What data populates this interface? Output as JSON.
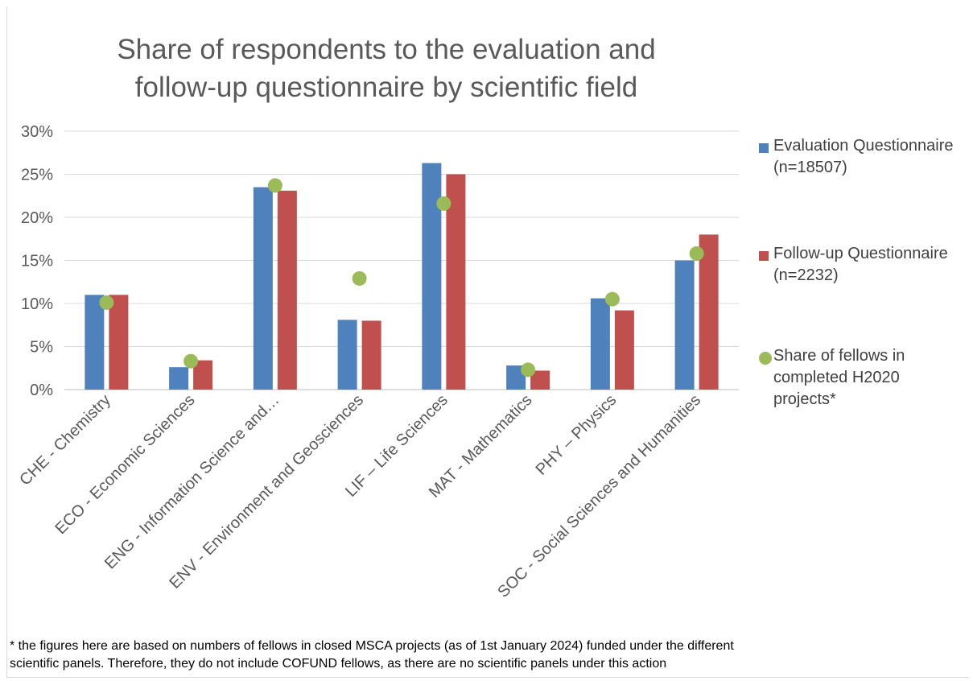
{
  "chart_data": {
    "type": "bar",
    "title": "Share of respondents to the evaluation and follow-up questionnaire by scientific field",
    "title_lines": [
      "Share of respondents to the evaluation and",
      "follow-up questionnaire by scientific field"
    ],
    "categories": [
      "CHE - Chemistry",
      "ECO - Economic Sciences",
      "ENG - Information Science and…",
      "ENV - Environment and Geosciences",
      "LIF – Life Sciences",
      "MAT - Mathematics",
      "PHY – Physics",
      "SOC - Social Sciences and Humanities"
    ],
    "series": [
      {
        "name": "Evaluation Questionnaire (n=18507)",
        "label_lines": [
          "Evaluation Questionnaire",
          "(n=18507)"
        ],
        "kind": "bar",
        "color": "#4f81bd",
        "values": [
          11.0,
          2.6,
          23.5,
          8.1,
          26.3,
          2.8,
          10.6,
          15.0
        ]
      },
      {
        "name": "Follow-up Questionnaire (n=2232)",
        "label_lines": [
          "Follow-up Questionnaire",
          "(n=2232)"
        ],
        "kind": "bar",
        "color": "#c0504d",
        "values": [
          11.0,
          3.4,
          23.1,
          8.0,
          25.0,
          2.2,
          9.2,
          18.0
        ]
      },
      {
        "name": "Share of fellows in completed H2020 projects*",
        "label_lines": [
          "Share of fellows in",
          "completed H2020",
          "projects*"
        ],
        "kind": "marker",
        "color": "#9bbb59",
        "values": [
          10.1,
          3.3,
          23.7,
          12.9,
          21.6,
          2.3,
          10.5,
          15.8
        ]
      }
    ],
    "y_ticks": [
      "0%",
      "5%",
      "10%",
      "15%",
      "20%",
      "25%",
      "30%"
    ],
    "ylim": [
      0,
      30
    ],
    "grid": true,
    "legend_position": "right"
  },
  "footnote_lines": [
    "* the figures here are based on numbers of fellows in closed MSCA projects (as of  1st January 2024) funded under the different",
    "scientific panels. Therefore, they do not include COFUND fellows, as there are no scientific panels under this action"
  ]
}
